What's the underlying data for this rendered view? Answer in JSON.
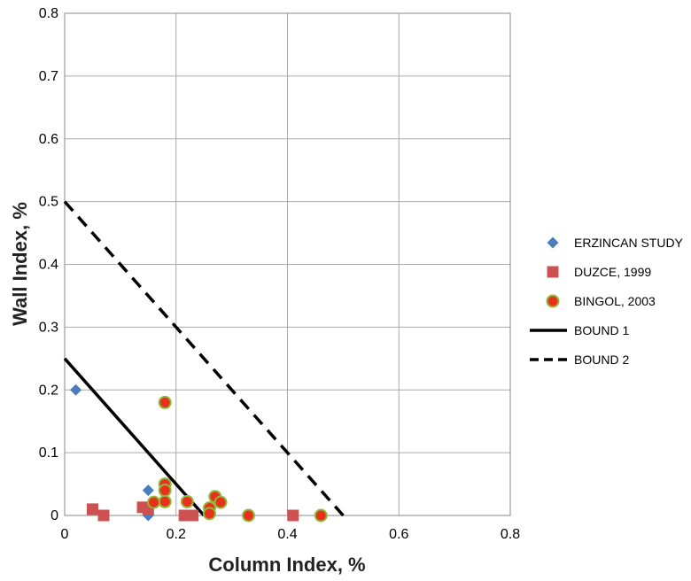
{
  "chart_data": {
    "type": "scatter",
    "xlabel": "Column Index, %",
    "ylabel": "Wall Index, %",
    "xlim": [
      0,
      0.8
    ],
    "ylim": [
      0,
      0.8
    ],
    "x_ticks": [
      "0",
      "0.2",
      "0.4",
      "0.6",
      "0.8"
    ],
    "y_ticks": [
      "0",
      "0.1",
      "0.2",
      "0.3",
      "0.4",
      "0.5",
      "0.6",
      "0.7",
      "0.8"
    ],
    "grid": true,
    "legend_position": "right",
    "series": [
      {
        "name": "ERZINCAN STUDY",
        "marker": "diamond",
        "color": "#4a7ebf",
        "points": [
          [
            0.02,
            0.2
          ],
          [
            0.15,
            0.04
          ],
          [
            0.15,
            0.0
          ]
        ]
      },
      {
        "name": "DUZCE, 1999",
        "marker": "square",
        "color": "#cc5150",
        "points": [
          [
            0.05,
            0.01
          ],
          [
            0.07,
            0.0
          ],
          [
            0.14,
            0.013
          ],
          [
            0.15,
            0.01
          ],
          [
            0.215,
            0.0
          ],
          [
            0.23,
            0.0
          ],
          [
            0.41,
            0.0
          ]
        ]
      },
      {
        "name": "BINGOL, 2003",
        "marker": "circle",
        "color": "#e8311a",
        "edge": "#8fb83c",
        "points": [
          [
            0.18,
            0.18
          ],
          [
            0.18,
            0.05
          ],
          [
            0.18,
            0.04
          ],
          [
            0.18,
            0.022
          ],
          [
            0.16,
            0.021
          ],
          [
            0.22,
            0.022
          ],
          [
            0.26,
            0.012
          ],
          [
            0.26,
            0.003
          ],
          [
            0.27,
            0.03
          ],
          [
            0.28,
            0.021
          ],
          [
            0.33,
            0.0
          ],
          [
            0.46,
            0.0
          ]
        ]
      }
    ],
    "lines": [
      {
        "name": "BOUND 1",
        "style": "solid",
        "color": "#000000",
        "points": [
          [
            0,
            0.25
          ],
          [
            0.25,
            0
          ]
        ]
      },
      {
        "name": "BOUND 2",
        "style": "dashed",
        "color": "#000000",
        "points": [
          [
            0,
            0.5
          ],
          [
            0.5,
            0
          ]
        ]
      }
    ]
  }
}
